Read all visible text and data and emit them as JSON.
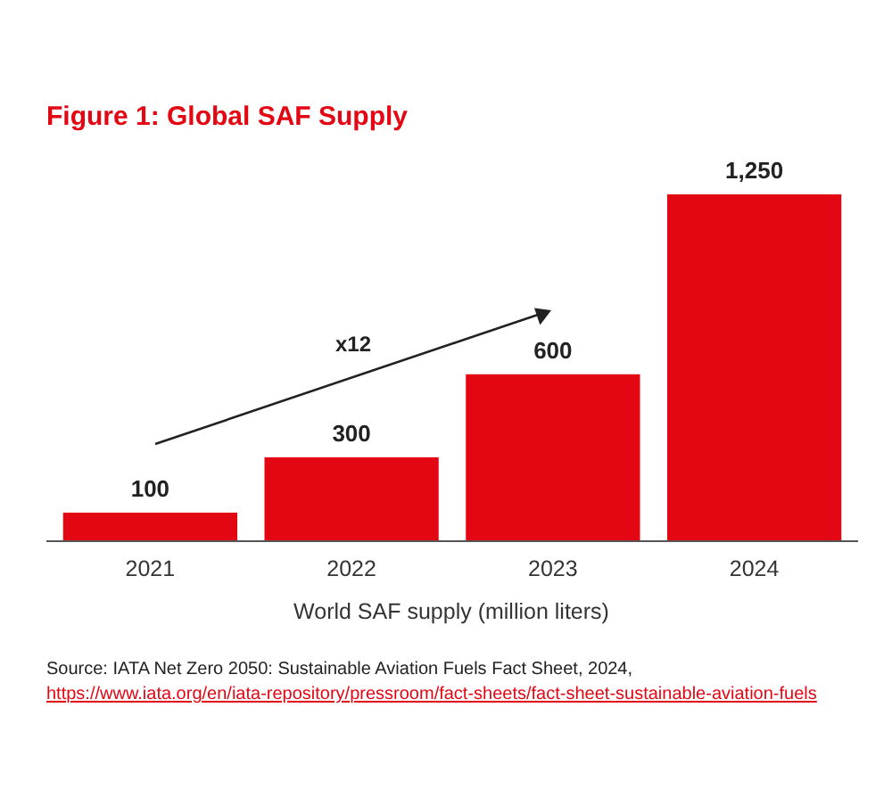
{
  "chart_data": {
    "type": "bar",
    "title": "Figure 1: Global SAF Supply",
    "xlabel": "World SAF supply (million liters)",
    "categories": [
      "2021",
      "2022",
      "2023",
      "2024"
    ],
    "values": [
      100,
      300,
      600,
      1250
    ],
    "color": "#e30613",
    "value_labels": [
      "100",
      "300",
      "600",
      "1,250"
    ],
    "annotations": [
      "x12",
      "Source: IATA Net Zero 2050: Sustainable Aviation Fuels Fact Sheet, 2024,",
      "https://www.iata.org/en/iata-repository/pressroom/fact-sheets/fact-sheet-sustainable-aviation-fuels"
    ]
  }
}
